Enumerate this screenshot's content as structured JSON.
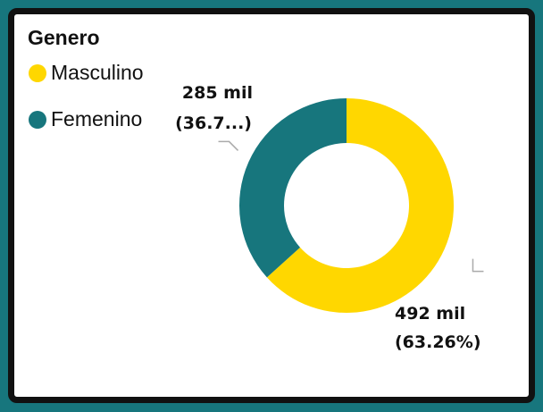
{
  "chart_data": {
    "type": "pie",
    "title": "Genero",
    "donut": true,
    "legend": "top-left",
    "categories": [
      "Masculino",
      "Femenino"
    ],
    "values": [
      492,
      285
    ],
    "value_labels": [
      "492 mil",
      "285 mil"
    ],
    "percent_labels": [
      "(63.26%)",
      "(36.7...)"
    ],
    "colors": [
      "#FFD700",
      "#17767D"
    ]
  }
}
